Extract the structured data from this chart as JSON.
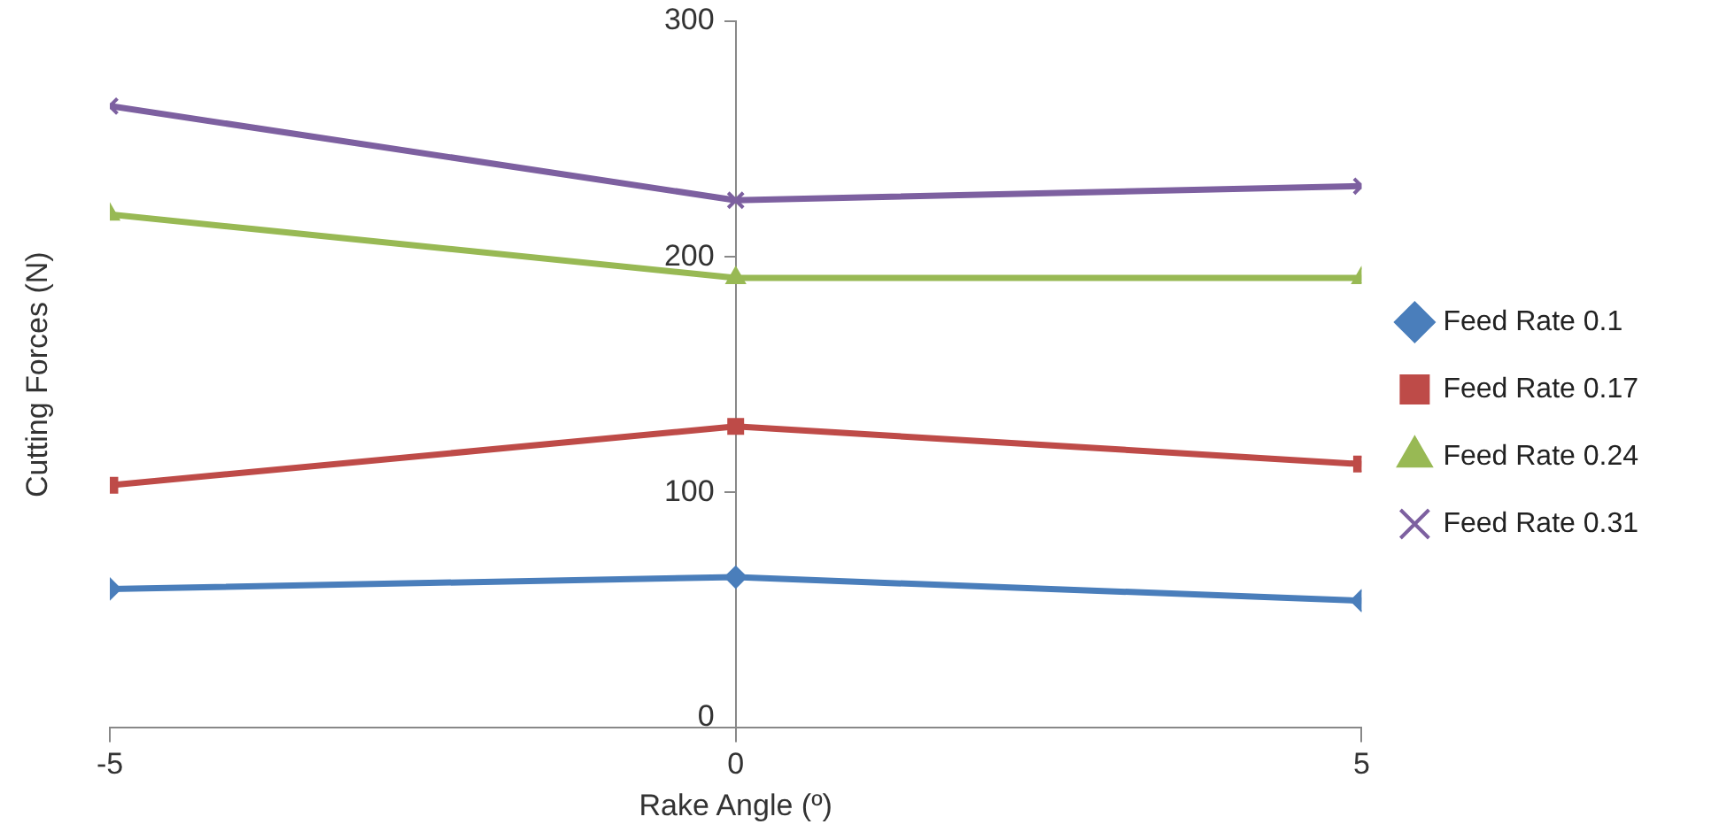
{
  "chart_data": {
    "type": "line",
    "xlabel": "Rake Angle (º)",
    "ylabel": "Cutting Forces (N)",
    "x": [
      -5,
      0,
      5
    ],
    "xlim": [
      -5,
      5
    ],
    "xticks": [
      -5,
      0,
      5
    ],
    "ylim": [
      0,
      300
    ],
    "yticks": [
      0,
      100,
      200,
      300
    ],
    "grid": false,
    "legend": "right",
    "series": [
      {
        "name": "Feed Rate 0.1",
        "color": "#4a7ebb",
        "marker": "diamond",
        "values": [
          59,
          64,
          54
        ]
      },
      {
        "name": "Feed Rate 0.17",
        "color": "#be4b48",
        "marker": "square",
        "values": [
          103,
          128,
          112
        ]
      },
      {
        "name": "Feed Rate 0.24",
        "color": "#98b954",
        "marker": "triangle",
        "values": [
          218,
          191,
          191
        ]
      },
      {
        "name": "Feed Rate 0.31",
        "color": "#7d60a0",
        "marker": "cross",
        "values": [
          264,
          224,
          230
        ]
      }
    ]
  }
}
